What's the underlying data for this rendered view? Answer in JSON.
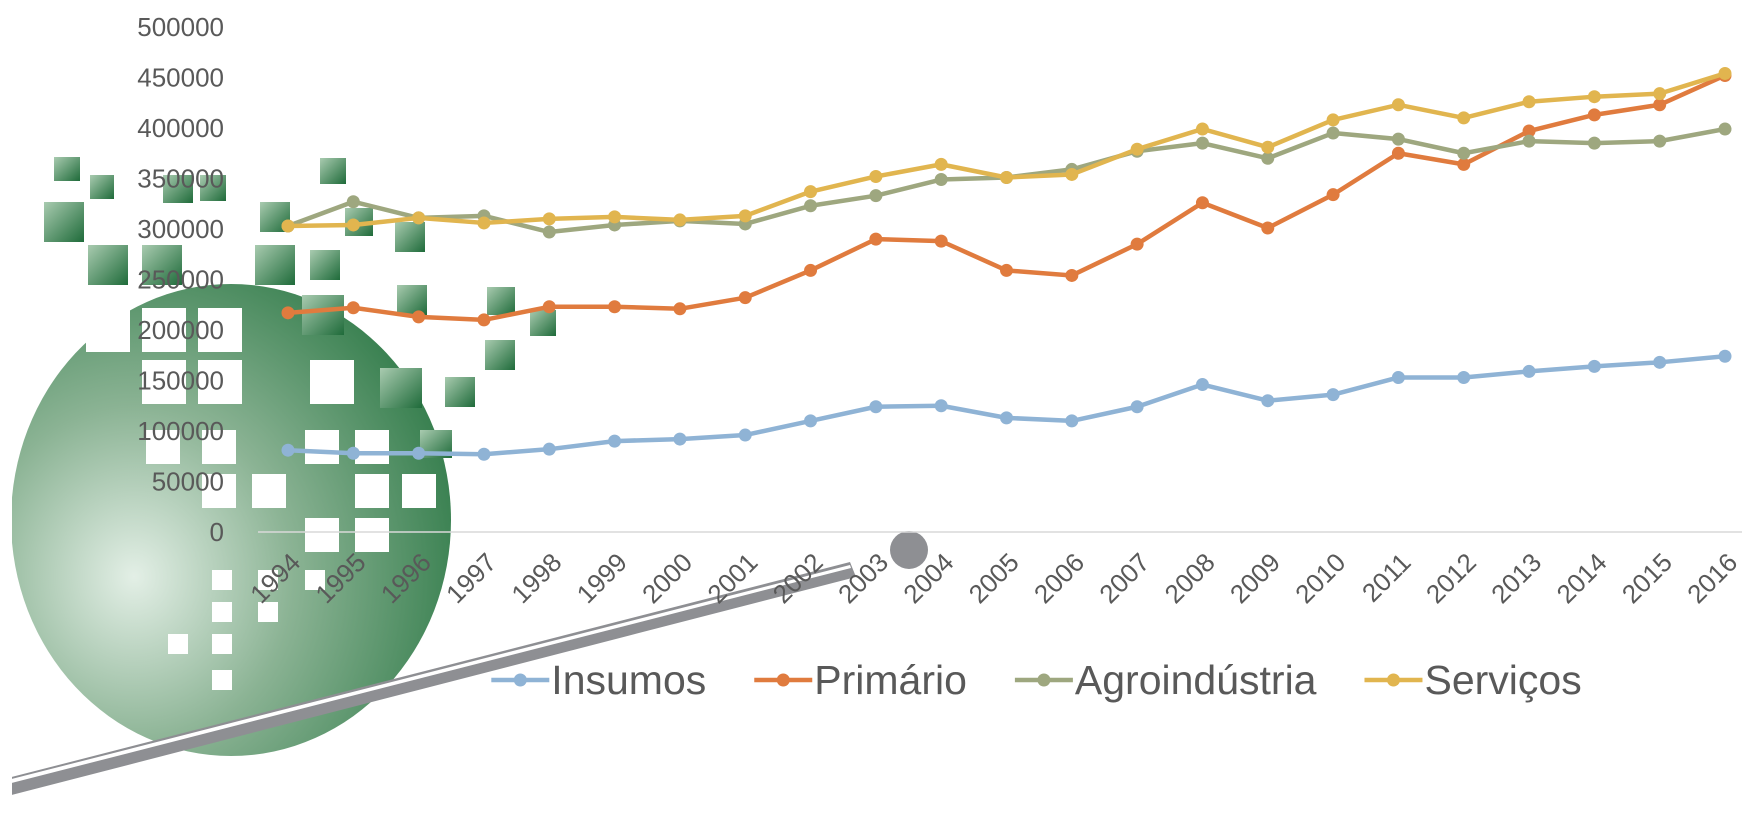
{
  "chart_data": {
    "type": "line",
    "categories": [
      "1994",
      "1995",
      "1996",
      "1997",
      "1998",
      "1999",
      "2000",
      "2001",
      "2002",
      "2003",
      "2004",
      "2005",
      "2006",
      "2007",
      "2008",
      "2009",
      "2010",
      "2011",
      "2012",
      "2013",
      "2014",
      "2015",
      "2016"
    ],
    "series": [
      {
        "name": "Insumos",
        "color": "#8fb3d5",
        "values": [
          81000,
          78000,
          78000,
          77000,
          82000,
          90000,
          92000,
          96000,
          110000,
          124000,
          125000,
          113000,
          110000,
          124000,
          146000,
          130000,
          136000,
          153000,
          153000,
          159000,
          164000,
          168000,
          174000
        ]
      },
      {
        "name": "Primário",
        "color": "#e07b3e",
        "values": [
          217000,
          222000,
          213000,
          210000,
          223000,
          223000,
          221000,
          232000,
          259000,
          290000,
          288000,
          259000,
          254000,
          285000,
          326000,
          301000,
          334000,
          375000,
          364000,
          397000,
          413000,
          423000,
          452000
        ]
      },
      {
        "name": "Agroindústria",
        "color": "#9ea77f",
        "values": [
          303000,
          327000,
          311000,
          313000,
          297000,
          304000,
          308000,
          305000,
          323000,
          333000,
          349000,
          351000,
          359000,
          377000,
          385000,
          370000,
          395000,
          389000,
          375000,
          387000,
          385000,
          387000,
          399000
        ]
      },
      {
        "name": "Serviços",
        "color": "#e1b54f",
        "values": [
          303000,
          304000,
          311000,
          306000,
          310000,
          312000,
          309000,
          313000,
          337000,
          352000,
          364000,
          351000,
          354000,
          379000,
          399000,
          381000,
          408000,
          423000,
          410000,
          426000,
          431000,
          434000,
          454000
        ]
      }
    ],
    "ylim": [
      0,
      500000
    ],
    "yticks": [
      0,
      50000,
      100000,
      150000,
      200000,
      250000,
      300000,
      350000,
      400000,
      450000,
      500000
    ],
    "legend": "bottom"
  }
}
